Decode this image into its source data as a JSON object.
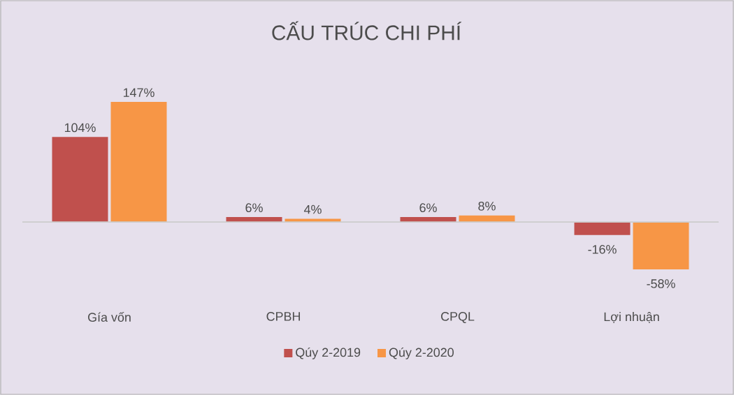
{
  "chart_data": {
    "type": "bar",
    "title": "CẤU TRÚC CHI PHÍ",
    "categories": [
      "Gía vốn",
      "CPBH",
      "CPQL",
      "Lợi nhuận"
    ],
    "series": [
      {
        "name": "Qúy 2-2019",
        "color": "#c0504d",
        "values": [
          104,
          6,
          6,
          -16
        ],
        "value_labels": [
          "104%",
          "6%",
          "6%",
          "-16%"
        ]
      },
      {
        "name": "Qúy 2-2020",
        "color": "#f79646",
        "values": [
          147,
          4,
          8,
          -58
        ],
        "value_labels": [
          "147%",
          "4%",
          "8%",
          "-58%"
        ]
      }
    ],
    "legend": "bottom"
  }
}
